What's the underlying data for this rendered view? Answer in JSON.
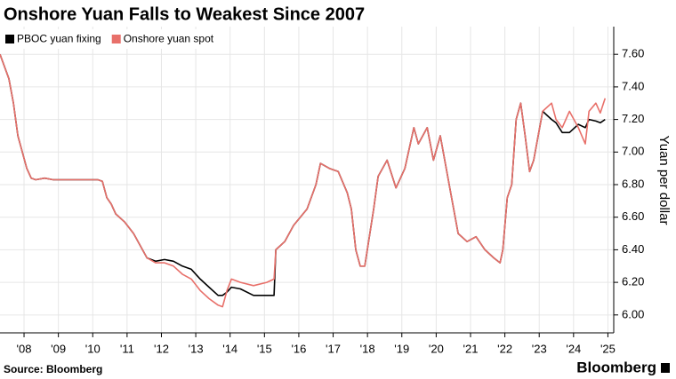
{
  "chart_data": {
    "type": "line",
    "title": "Onshore Yuan Falls to Weakest Since 2007",
    "y_label": "Yuan per dollar",
    "source": "Source: Bloomberg",
    "brand": "Bloomberg",
    "x": [
      2007.3,
      2007.56,
      2007.69,
      2007.82,
      2007.95,
      2008.08,
      2008.21,
      2008.34,
      2008.6,
      2008.85,
      2009.37,
      2009.89,
      2010.15,
      2010.28,
      2010.41,
      2010.54,
      2010.67,
      2010.93,
      2011.19,
      2011.45,
      2011.58,
      2011.83,
      2012.09,
      2012.35,
      2012.61,
      2012.87,
      2013.13,
      2013.39,
      2013.65,
      2013.78,
      2013.91,
      2014.04,
      2014.3,
      2014.68,
      2015.07,
      2015.28,
      2015.33,
      2015.59,
      2015.85,
      2016.24,
      2016.5,
      2016.63,
      2016.89,
      2017.15,
      2017.41,
      2017.53,
      2017.66,
      2017.79,
      2017.92,
      2018.18,
      2018.31,
      2018.57,
      2018.83,
      2019.09,
      2019.35,
      2019.48,
      2019.74,
      2019.92,
      2020.12,
      2020.38,
      2020.64,
      2020.9,
      2021.16,
      2021.42,
      2021.68,
      2021.86,
      2021.94,
      2022.07,
      2022.2,
      2022.33,
      2022.46,
      2022.59,
      2022.72,
      2022.84,
      2023.1,
      2023.36,
      2023.49,
      2023.67,
      2023.88,
      2024.14,
      2024.34,
      2024.45,
      2024.65,
      2024.78,
      2024.92
    ],
    "series": [
      {
        "name": "PBOC yuan fixing",
        "color": "#000000",
        "values": [
          7.6,
          7.45,
          7.3,
          7.1,
          7.0,
          6.9,
          6.84,
          6.83,
          6.84,
          6.83,
          6.83,
          6.83,
          6.83,
          6.82,
          6.72,
          6.68,
          6.62,
          6.57,
          6.5,
          6.4,
          6.35,
          6.33,
          6.34,
          6.33,
          6.3,
          6.28,
          6.22,
          6.17,
          6.12,
          6.12,
          6.14,
          6.17,
          6.16,
          6.12,
          6.12,
          6.12,
          6.4,
          6.45,
          6.55,
          6.65,
          6.8,
          6.93,
          6.9,
          6.88,
          6.75,
          6.65,
          6.4,
          6.3,
          6.3,
          6.65,
          6.85,
          6.95,
          6.78,
          6.9,
          7.15,
          7.05,
          7.15,
          6.95,
          7.1,
          6.8,
          6.5,
          6.45,
          6.48,
          6.4,
          6.35,
          6.32,
          6.4,
          6.72,
          6.8,
          7.2,
          7.3,
          7.1,
          6.88,
          6.95,
          7.25,
          7.2,
          7.18,
          7.12,
          7.12,
          7.17,
          7.15,
          7.2,
          7.19,
          7.18,
          7.2
        ]
      },
      {
        "name": "Onshore yuan spot",
        "color": "#e8706a",
        "values": [
          7.6,
          7.45,
          7.3,
          7.1,
          7.0,
          6.9,
          6.84,
          6.83,
          6.84,
          6.83,
          6.83,
          6.83,
          6.83,
          6.82,
          6.72,
          6.68,
          6.62,
          6.57,
          6.5,
          6.4,
          6.35,
          6.32,
          6.32,
          6.3,
          6.25,
          6.22,
          6.15,
          6.1,
          6.06,
          6.05,
          6.15,
          6.22,
          6.2,
          6.18,
          6.2,
          6.22,
          6.4,
          6.45,
          6.55,
          6.65,
          6.8,
          6.93,
          6.9,
          6.88,
          6.75,
          6.65,
          6.4,
          6.3,
          6.3,
          6.65,
          6.85,
          6.95,
          6.78,
          6.9,
          7.15,
          7.05,
          7.15,
          6.95,
          7.1,
          6.8,
          6.5,
          6.45,
          6.48,
          6.4,
          6.35,
          6.32,
          6.4,
          6.72,
          6.8,
          7.2,
          7.3,
          7.1,
          6.88,
          6.95,
          7.25,
          7.3,
          7.2,
          7.15,
          7.25,
          7.15,
          7.05,
          7.25,
          7.3,
          7.24,
          7.33
        ]
      }
    ],
    "xlim": [
      2007.3,
      2025.17
    ],
    "xticks": [
      {
        "value": 2008,
        "label": "'08"
      },
      {
        "value": 2009,
        "label": "'09"
      },
      {
        "value": 2010,
        "label": "'10"
      },
      {
        "value": 2011,
        "label": "'11"
      },
      {
        "value": 2012,
        "label": "'12"
      },
      {
        "value": 2013,
        "label": "'13"
      },
      {
        "value": 2014,
        "label": "'14"
      },
      {
        "value": 2015,
        "label": "'15"
      },
      {
        "value": 2016,
        "label": "'16"
      },
      {
        "value": 2017,
        "label": "'17"
      },
      {
        "value": 2018,
        "label": "'18"
      },
      {
        "value": 2019,
        "label": "'19"
      },
      {
        "value": 2020,
        "label": "'20"
      },
      {
        "value": 2021,
        "label": "'21"
      },
      {
        "value": 2022,
        "label": "'22"
      },
      {
        "value": 2023,
        "label": "'23"
      },
      {
        "value": 2024,
        "label": "'24"
      },
      {
        "value": 2025,
        "label": "'25"
      }
    ],
    "ylim": [
      5.89,
      7.77
    ],
    "yticks": [
      {
        "value": 6.0,
        "label": "6.00"
      },
      {
        "value": 6.2,
        "label": "6.20"
      },
      {
        "value": 6.4,
        "label": "6.40"
      },
      {
        "value": 6.6,
        "label": "6.60"
      },
      {
        "value": 6.8,
        "label": "6.80"
      },
      {
        "value": 7.0,
        "label": "7.00"
      },
      {
        "value": 7.2,
        "label": "7.20"
      },
      {
        "value": 7.4,
        "label": "7.40"
      },
      {
        "value": 7.6,
        "label": "7.60"
      }
    ],
    "grid": true,
    "legend": "top-left"
  }
}
